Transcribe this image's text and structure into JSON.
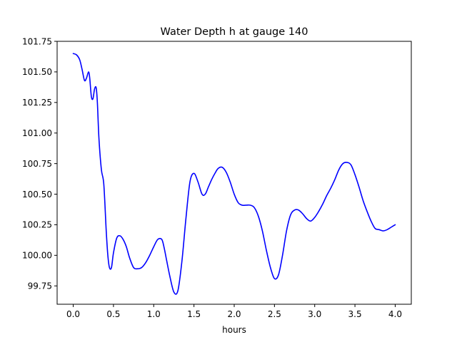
{
  "chart_data": {
    "type": "line",
    "title": "Water Depth h at gauge 140",
    "xlabel": "hours",
    "ylabel": "",
    "xlim": [
      -0.2,
      4.2
    ],
    "ylim": [
      99.6,
      101.75
    ],
    "xticks": [
      0.0,
      0.5,
      1.0,
      1.5,
      2.0,
      2.5,
      3.0,
      3.5,
      4.0
    ],
    "xtick_labels": [
      "0.0",
      "0.5",
      "1.0",
      "1.5",
      "2.0",
      "2.5",
      "3.0",
      "3.5",
      "4.0"
    ],
    "yticks": [
      99.75,
      100.0,
      100.25,
      100.5,
      100.75,
      101.0,
      101.25,
      101.5,
      101.75
    ],
    "ytick_labels": [
      "99.75",
      "100.00",
      "100.25",
      "100.50",
      "100.75",
      "101.00",
      "101.25",
      "101.50",
      "101.75"
    ],
    "grid": false,
    "series": [
      {
        "color": "#0000ff",
        "x": [
          0.0,
          0.04,
          0.08,
          0.11,
          0.14,
          0.165,
          0.19,
          0.205,
          0.225,
          0.245,
          0.265,
          0.285,
          0.3,
          0.32,
          0.35,
          0.38,
          0.41,
          0.43,
          0.45,
          0.475,
          0.5,
          0.54,
          0.58,
          0.62,
          0.66,
          0.7,
          0.75,
          0.8,
          0.85,
          0.9,
          0.95,
          1.0,
          1.05,
          1.1,
          1.13,
          1.16,
          1.2,
          1.25,
          1.3,
          1.35,
          1.4,
          1.45,
          1.5,
          1.55,
          1.6,
          1.64,
          1.68,
          1.72,
          1.76,
          1.8,
          1.85,
          1.9,
          1.95,
          2.0,
          2.05,
          2.1,
          2.15,
          2.2,
          2.25,
          2.3,
          2.35,
          2.4,
          2.45,
          2.5,
          2.55,
          2.6,
          2.65,
          2.7,
          2.75,
          2.8,
          2.85,
          2.9,
          2.95,
          3.0,
          3.05,
          3.1,
          3.15,
          3.2,
          3.25,
          3.3,
          3.35,
          3.4,
          3.45,
          3.5,
          3.55,
          3.6,
          3.65,
          3.7,
          3.75,
          3.8,
          3.85,
          3.9,
          3.95,
          4.0
        ],
        "y": [
          101.65,
          101.64,
          101.6,
          101.52,
          101.43,
          101.45,
          101.5,
          101.45,
          101.3,
          101.28,
          101.36,
          101.37,
          101.25,
          100.95,
          100.7,
          100.58,
          100.2,
          100.0,
          99.9,
          99.9,
          100.02,
          100.14,
          100.16,
          100.13,
          100.07,
          99.98,
          99.9,
          99.89,
          99.9,
          99.94,
          100.0,
          100.07,
          100.13,
          100.13,
          100.06,
          99.96,
          99.83,
          99.7,
          99.71,
          99.95,
          100.3,
          100.6,
          100.67,
          100.6,
          100.5,
          100.5,
          100.56,
          100.62,
          100.67,
          100.71,
          100.72,
          100.68,
          100.6,
          100.5,
          100.43,
          100.41,
          100.41,
          100.41,
          100.39,
          100.32,
          100.2,
          100.04,
          99.9,
          99.81,
          99.84,
          100.0,
          100.2,
          100.33,
          100.37,
          100.37,
          100.34,
          100.3,
          100.28,
          100.31,
          100.36,
          100.42,
          100.49,
          100.55,
          100.62,
          100.7,
          100.75,
          100.76,
          100.74,
          100.66,
          100.56,
          100.45,
          100.36,
          100.28,
          100.22,
          100.21,
          100.2,
          100.21,
          100.23,
          100.25
        ]
      }
    ]
  }
}
